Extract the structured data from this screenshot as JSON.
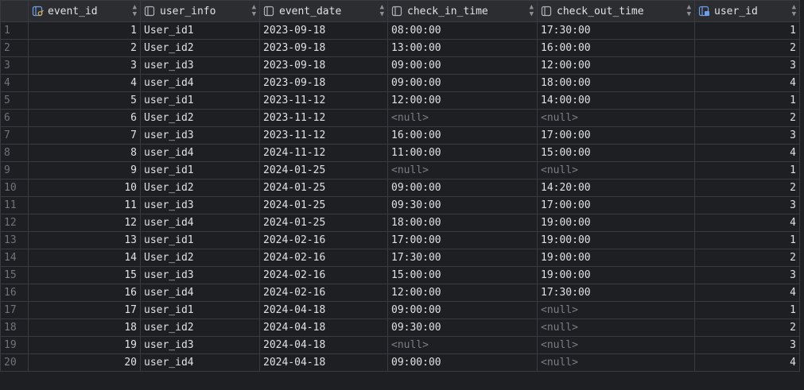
{
  "columns": [
    {
      "name": "event_id",
      "kind": "key"
    },
    {
      "name": "user_info",
      "kind": "column"
    },
    {
      "name": "event_date",
      "kind": "column"
    },
    {
      "name": "check_in_time",
      "kind": "column"
    },
    {
      "name": "check_out_time",
      "kind": "column"
    },
    {
      "name": "user_id",
      "kind": "foreign-key"
    }
  ],
  "null_label": "<null>",
  "colors": {
    "background": "#1e1f22",
    "header": "#2b2d30",
    "grid": "#393b40",
    "key_icon": "#e0b25b",
    "fk_icon": "#6e9ee8"
  },
  "rows": [
    [
      "1",
      "1",
      "User_id1",
      "2023-09-18",
      "08:00:00",
      "17:30:00",
      "1"
    ],
    [
      "2",
      "2",
      "User_id2",
      "2023-09-18",
      "13:00:00",
      "16:00:00",
      "2"
    ],
    [
      "3",
      "3",
      "user_id3",
      "2023-09-18",
      "09:00:00",
      "12:00:00",
      "3"
    ],
    [
      "4",
      "4",
      "user_id4",
      "2023-09-18",
      "09:00:00",
      "18:00:00",
      "4"
    ],
    [
      "5",
      "5",
      "user_id1",
      "2023-11-12",
      "12:00:00",
      "14:00:00",
      "1"
    ],
    [
      "6",
      "6",
      "User_id2",
      "2023-11-12",
      null,
      null,
      "2"
    ],
    [
      "7",
      "7",
      "user_id3",
      "2023-11-12",
      "16:00:00",
      "17:00:00",
      "3"
    ],
    [
      "8",
      "8",
      "user_id4",
      "2024-11-12",
      "11:00:00",
      "15:00:00",
      "4"
    ],
    [
      "9",
      "9",
      "user_id1",
      "2024-01-25",
      null,
      null,
      "1"
    ],
    [
      "10",
      "10",
      "User_id2",
      "2024-01-25",
      "09:00:00",
      "14:20:00",
      "2"
    ],
    [
      "11",
      "11",
      "user_id3",
      "2024-01-25",
      "09:30:00",
      "17:00:00",
      "3"
    ],
    [
      "12",
      "12",
      "user_id4",
      "2024-01-25",
      "18:00:00",
      "19:00:00",
      "4"
    ],
    [
      "13",
      "13",
      "user_id1",
      "2024-02-16",
      "17:00:00",
      "19:00:00",
      "1"
    ],
    [
      "14",
      "14",
      "User_id2",
      "2024-02-16",
      "17:30:00",
      "19:00:00",
      "2"
    ],
    [
      "15",
      "15",
      "user_id3",
      "2024-02-16",
      "15:00:00",
      "19:00:00",
      "3"
    ],
    [
      "16",
      "16",
      "user_id4",
      "2024-02-16",
      "12:00:00",
      "17:30:00",
      "4"
    ],
    [
      "17",
      "17",
      "user_id1",
      "2024-04-18",
      "09:00:00",
      null,
      "1"
    ],
    [
      "18",
      "18",
      "user_id2",
      "2024-04-18",
      "09:30:00",
      null,
      "2"
    ],
    [
      "19",
      "19",
      "user_id3",
      "2024-04-18",
      null,
      null,
      "3"
    ],
    [
      "20",
      "20",
      "user_id4",
      "2024-04-18",
      "09:00:00",
      null,
      "4"
    ]
  ]
}
